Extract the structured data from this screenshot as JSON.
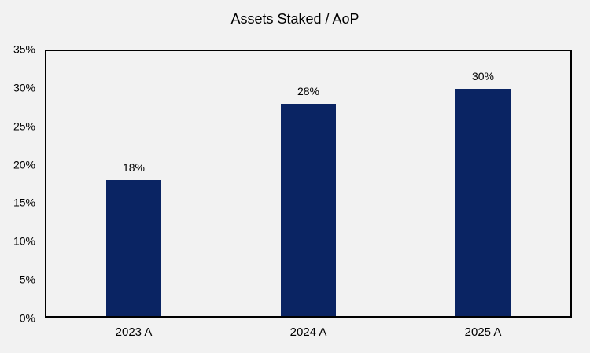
{
  "page": {
    "title": "Assets Staked / AoP"
  },
  "colors": {
    "background": "#f2f2f2",
    "plot_background": "#f2f2f2",
    "bar": "#0a2463",
    "axis": "#000000",
    "text": "#000000"
  },
  "chart_data": {
    "type": "bar",
    "title": "Assets Staked / AoP",
    "categories": [
      "2023 A",
      "2024 A",
      "2025 A"
    ],
    "values": [
      18,
      28,
      30
    ],
    "data_labels": [
      "18%",
      "28%",
      "30%"
    ],
    "value_unit": "%",
    "xlabel": "",
    "ylabel": "",
    "ylim": [
      0,
      35
    ],
    "ytick_step": 5,
    "ytick_labels": [
      "0%",
      "5%",
      "10%",
      "15%",
      "20%",
      "25%",
      "30%",
      "35%"
    ],
    "grid": false,
    "legend": "none",
    "data_label_position": "above-bar"
  }
}
